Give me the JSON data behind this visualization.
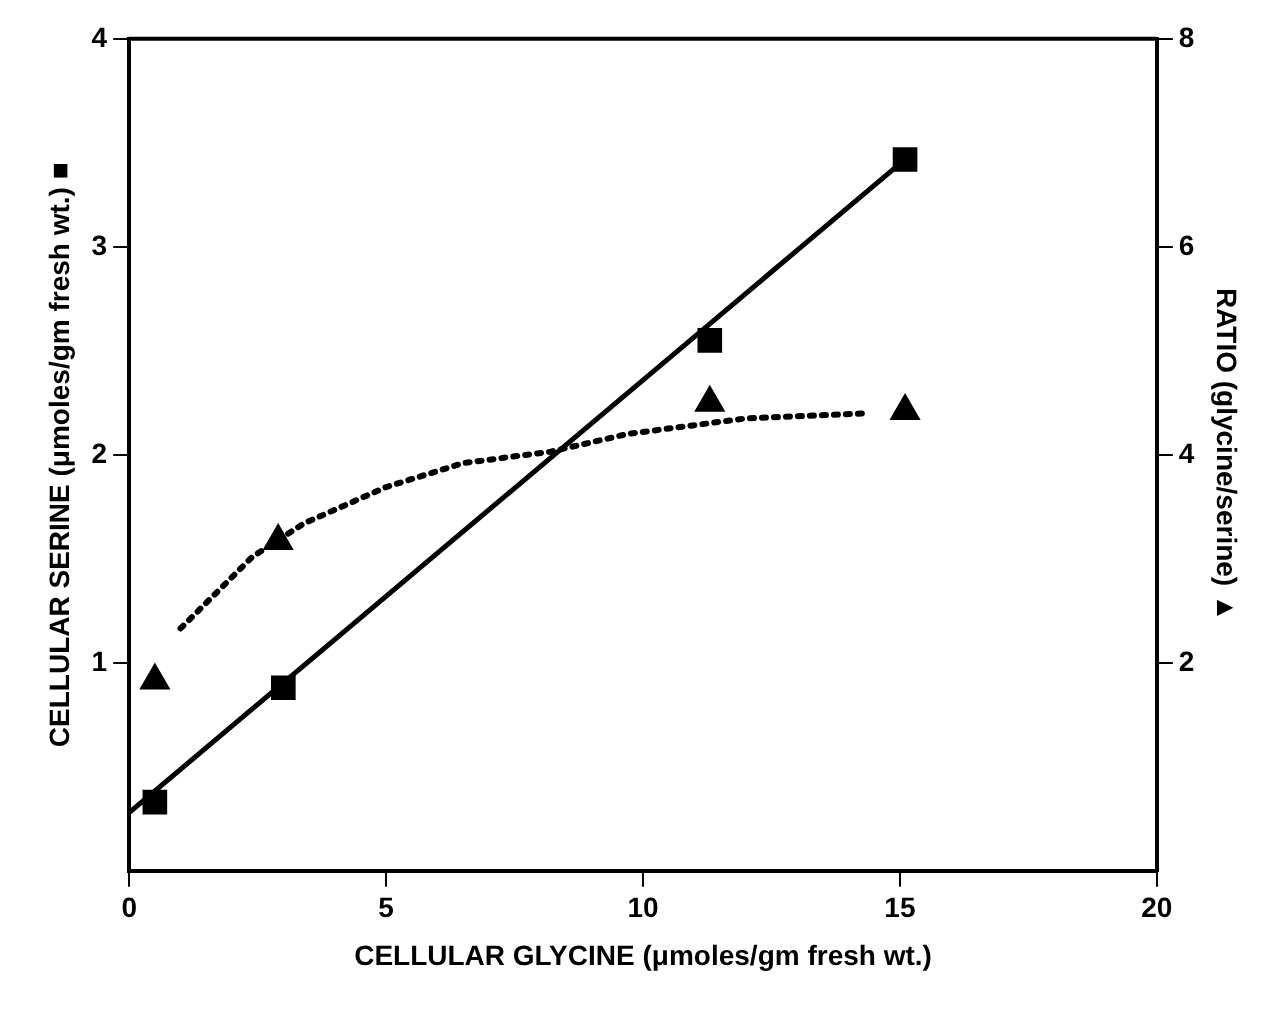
{
  "chart_data": {
    "type": "scatter",
    "xlabel": "CELLULAR GLYCINE (μmoles/gm fresh wt.)",
    "ylabel": "CELLULAR SERINE (μmoles/gm fresh wt.) ■",
    "y2label": "RATIO (glycine/serine) ▲",
    "xlim": [
      0,
      20
    ],
    "xticks": [
      0,
      5,
      10,
      15,
      20
    ],
    "ylim": [
      0,
      4
    ],
    "yticks": [
      1,
      2,
      3,
      4
    ],
    "y2lim": [
      0,
      8
    ],
    "y2ticks": [
      2,
      4,
      6,
      8
    ],
    "grid": false,
    "legend": false,
    "series": [
      {
        "color": "#000000",
        "marker": "square",
        "x": [
          0.5,
          3,
          11.3,
          15.1
        ],
        "values": [
          0.33,
          0.88,
          2.55,
          3.42
        ]
      },
      {
        "type": "line",
        "color": "#000000",
        "marker": "none",
        "line_style": "solid",
        "x": [
          0,
          15.1
        ],
        "values": [
          0.28,
          3.42
        ]
      },
      {
        "axis": "y2",
        "color": "#000000",
        "marker": "triangle",
        "x": [
          0.5,
          2.9,
          11.3,
          15.1
        ],
        "values": [
          1.83,
          3.17,
          4.5,
          4.42
        ]
      },
      {
        "type": "line",
        "axis": "y2",
        "color": "#000000",
        "marker": "none",
        "line_style": "dotted",
        "x": [
          1,
          2.4,
          3.4,
          5,
          6.5,
          8.2,
          9.7,
          12,
          14.4
        ],
        "values": [
          2.33,
          3.02,
          3.34,
          3.69,
          3.92,
          4.03,
          4.2,
          4.35,
          4.4
        ]
      }
    ]
  }
}
